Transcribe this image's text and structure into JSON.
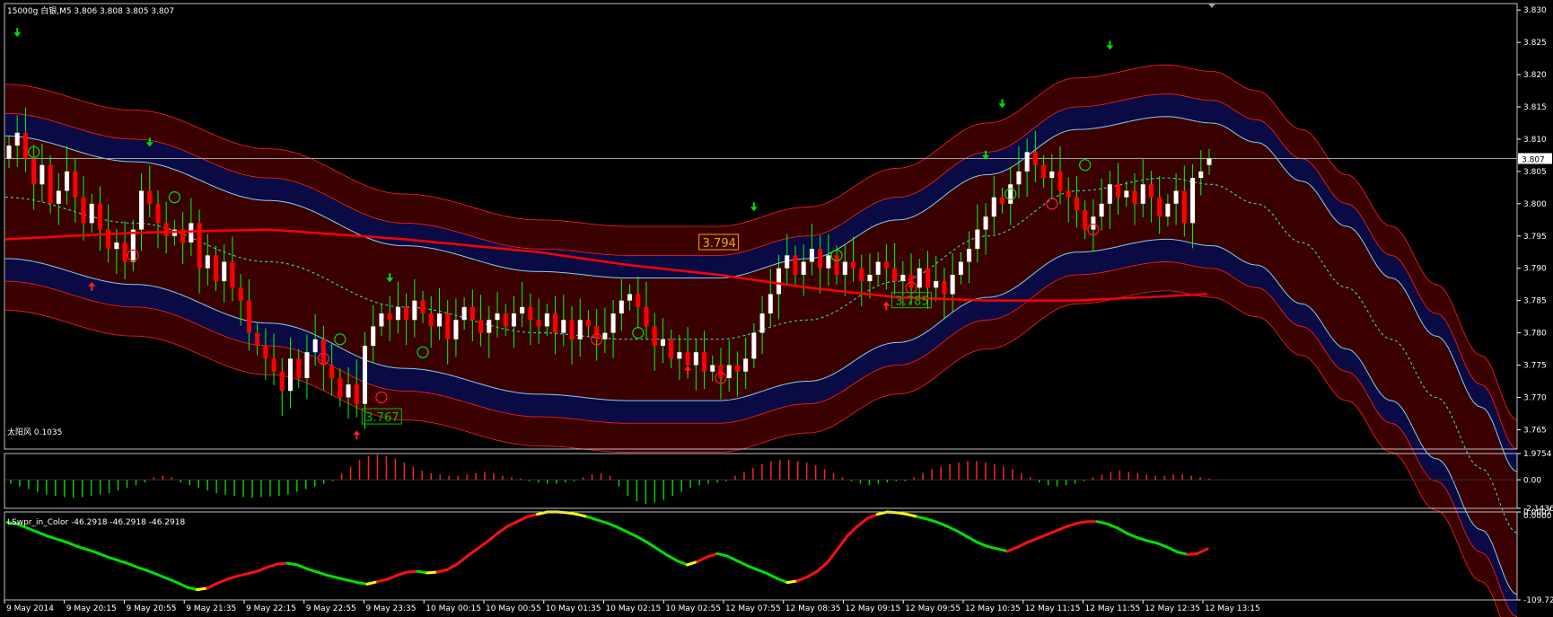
{
  "header": {
    "main_title": "15000g 白银,M5  3.806 3.808 3.805 3.807",
    "ind1_title": "太阳风 0.1035",
    "ind2_title": "LSwpr_in_Color -46.2918 -46.2918 -46.2918"
  },
  "main_axis": {
    "ticks": [
      "3.830",
      "3.825",
      "3.820",
      "3.815",
      "3.810",
      "3.805",
      "3.800",
      "3.795",
      "3.790",
      "3.785",
      "3.780",
      "3.775",
      "3.770",
      "3.765"
    ],
    "current_price": "3.807"
  },
  "ind1_axis": {
    "ticks": [
      "1.9754",
      "0.00",
      "-2.1436"
    ]
  },
  "ind2_axis": {
    "ticks": [
      "0.0007",
      "0.0000",
      "-109.725"
    ]
  },
  "time_axis": {
    "labels": [
      "9 May 2014",
      "9 May 20:15",
      "9 May 20:55",
      "9 May 21:35",
      "9 May 22:15",
      "9 May 22:55",
      "9 May 23:35",
      "10 May 00:15",
      "10 May 00:55",
      "10 May 01:35",
      "10 May 02:15",
      "10 May 02:55",
      "12 May 07:55",
      "12 May 08:35",
      "12 May 09:15",
      "12 May 09:55",
      "12 May 10:35",
      "12 May 11:15",
      "12 May 11:55",
      "12 May 12:35",
      "12 May 13:15"
    ]
  },
  "annotations": [
    {
      "text": "3.767",
      "color": "#00c000"
    },
    {
      "text": "3.794",
      "color": "#ffa500"
    },
    {
      "text": "3.785",
      "color": "#00c000"
    }
  ],
  "colors": {
    "bull": "#ffffff",
    "bear": "#ff0000",
    "wick": "#00ff00",
    "band_outer": "#440000",
    "band_inner": "#0a0a44",
    "band_line": "#ff2020",
    "band_blue": "#87ceeb",
    "ma_red": "#ff0000",
    "mid_dash": "#40e0d0",
    "up_arrow": "#ff2020",
    "down_arrow": "#00e000",
    "hist_pos": "#ff2020",
    "hist_neg": "#00d000",
    "wpr_green": "#00e000",
    "wpr_red": "#ff1010",
    "wpr_yellow": "#ffff00",
    "axis": "#ffffff",
    "grid": "#808080"
  },
  "chart_data": [
    {
      "type": "candlestick",
      "name": "15000g 白银,M5",
      "ylim": [
        3.762,
        3.831
      ],
      "last": {
        "open": 3.806,
        "high": 3.808,
        "low": 3.805,
        "close": 3.807
      },
      "close": [
        3.809,
        3.811,
        3.807,
        3.803,
        3.806,
        3.8,
        3.802,
        3.805,
        3.801,
        3.797,
        3.8,
        3.796,
        3.793,
        3.794,
        3.791,
        3.796,
        3.802,
        3.8,
        3.797,
        3.795,
        3.796,
        3.794,
        3.797,
        3.79,
        3.792,
        3.788,
        3.791,
        3.787,
        3.785,
        3.78,
        3.778,
        3.776,
        3.774,
        3.771,
        3.776,
        3.773,
        3.777,
        3.779,
        3.775,
        3.773,
        3.77,
        3.772,
        3.769,
        3.778,
        3.781,
        3.783,
        3.782,
        3.784,
        3.782,
        3.785,
        3.783,
        3.781,
        3.783,
        3.779,
        3.782,
        3.784,
        3.782,
        3.78,
        3.782,
        3.783,
        3.781,
        3.783,
        3.784,
        3.782,
        3.781,
        3.783,
        3.78,
        3.782,
        3.779,
        3.782,
        3.781,
        3.779,
        3.78,
        3.783,
        3.785,
        3.786,
        3.784,
        3.781,
        3.778,
        3.779,
        3.776,
        3.777,
        3.775,
        3.777,
        3.774,
        3.775,
        3.773,
        3.775,
        3.774,
        3.776,
        3.78,
        3.783,
        3.786,
        3.79,
        3.792,
        3.789,
        3.791,
        3.793,
        3.79,
        3.792,
        3.789,
        3.791,
        3.79,
        3.788,
        3.789,
        3.791,
        3.79,
        3.788,
        3.789,
        3.787,
        3.79,
        3.787,
        3.788,
        3.786,
        3.789,
        3.791,
        3.793,
        3.796,
        3.798,
        3.801,
        3.8,
        3.803,
        3.805,
        3.808,
        3.806,
        3.804,
        3.805,
        3.802,
        3.801,
        3.799,
        3.796,
        3.798,
        3.8,
        3.803,
        3.801,
        3.802,
        3.8,
        3.803,
        3.801,
        3.798,
        3.8,
        3.802,
        3.797,
        3.804,
        3.805,
        3.807
      ],
      "arrows_up": [
        0.22,
        24.0,
        18.3,
        14.5,
        11.2,
        38.8,
        19.8,
        33.0
      ],
      "signal_up_prices": [
        3.789,
        3.766,
        3.776,
        3.786
      ],
      "signal_down_prices": [
        3.825,
        3.808,
        3.787,
        3.798,
        3.806,
        3.814,
        3.823
      ]
    },
    {
      "type": "bar",
      "name": "太阳风",
      "ylim": [
        -2.1436,
        1.9754
      ],
      "last": 0.1035,
      "values": [
        -0.3,
        -0.5,
        -0.7,
        -0.9,
        -1.1,
        -1.2,
        -1.3,
        -1.35,
        -1.3,
        -1.2,
        -1.1,
        -1.0,
        -0.8,
        -0.6,
        -0.4,
        -0.2,
        0.2,
        0.3,
        0.2,
        -0.2,
        -0.4,
        -0.6,
        -0.8,
        -1.0,
        -1.1,
        -1.2,
        -1.3,
        -1.35,
        -1.3,
        -1.25,
        -1.2,
        -1.1,
        -0.9,
        -0.7,
        -0.5,
        -0.3,
        -0.1,
        0.5,
        1.0,
        1.5,
        1.8,
        1.9,
        1.8,
        1.6,
        1.3,
        1.0,
        0.7,
        0.5,
        0.4,
        0.3,
        0.3,
        0.4,
        0.5,
        0.6,
        0.5,
        0.3,
        0.2,
        0.1,
        -0.1,
        -0.2,
        -0.3,
        -0.3,
        -0.2,
        -0.1,
        0.2,
        0.4,
        0.5,
        0.3,
        -0.5,
        -1.2,
        -1.6,
        -1.8,
        -1.7,
        -1.5,
        -1.2,
        -0.9,
        -0.6,
        -0.4,
        -0.3,
        -0.2,
        -0.1,
        0.3,
        0.6,
        0.9,
        1.2,
        1.4,
        1.5,
        1.5,
        1.4,
        1.3,
        1.1,
        0.8,
        0.5,
        0.2,
        -0.1,
        -0.3,
        -0.4,
        -0.3,
        -0.2,
        -0.1,
        -0.1,
        0.2,
        0.5,
        0.8,
        1.0,
        1.2,
        1.3,
        1.4,
        1.4,
        1.3,
        1.2,
        1.0,
        0.8,
        0.5,
        0.2,
        -0.2,
        -0.4,
        -0.5,
        -0.4,
        -0.3,
        -0.1,
        0.2,
        0.4,
        0.6,
        0.7,
        0.6,
        0.5,
        0.4,
        0.3,
        0.3,
        0.4,
        0.4,
        0.3,
        0.2,
        0.1035
      ]
    },
    {
      "type": "line",
      "name": "LSwpr_in_Color",
      "ylim": [
        -109.725,
        0.0007
      ],
      "last": -46.2918,
      "values": [
        -13,
        -15,
        -20,
        -25,
        -30,
        -34,
        -38,
        -43,
        -47,
        -51,
        -56,
        -60,
        -64,
        -69,
        -73,
        -78,
        -83,
        -88,
        -94,
        -97,
        -95,
        -89,
        -84,
        -80,
        -77,
        -74,
        -69,
        -65,
        -64,
        -66,
        -71,
        -75,
        -79,
        -82,
        -85,
        -88,
        -90,
        -87,
        -84,
        -79,
        -75,
        -74,
        -76,
        -75,
        -72,
        -65,
        -55,
        -46,
        -37,
        -27,
        -18,
        -12,
        -6,
        -3,
        0,
        0,
        -1,
        -3,
        -6,
        -10,
        -14,
        -19,
        -25,
        -31,
        -38,
        -46,
        -54,
        -61,
        -66,
        -62,
        -56,
        -52,
        -55,
        -61,
        -67,
        -72,
        -77,
        -83,
        -88,
        -86,
        -81,
        -74,
        -63,
        -47,
        -30,
        -18,
        -8,
        -3,
        0,
        -1,
        -3,
        -6,
        -9,
        -13,
        -18,
        -24,
        -31,
        -38,
        -43,
        -46,
        -49,
        -44,
        -38,
        -33,
        -28,
        -23,
        -18,
        -14,
        -12,
        -12,
        -15,
        -20,
        -27,
        -32,
        -36,
        -39,
        -44,
        -50,
        -53,
        -52,
        -46
      ]
    }
  ]
}
